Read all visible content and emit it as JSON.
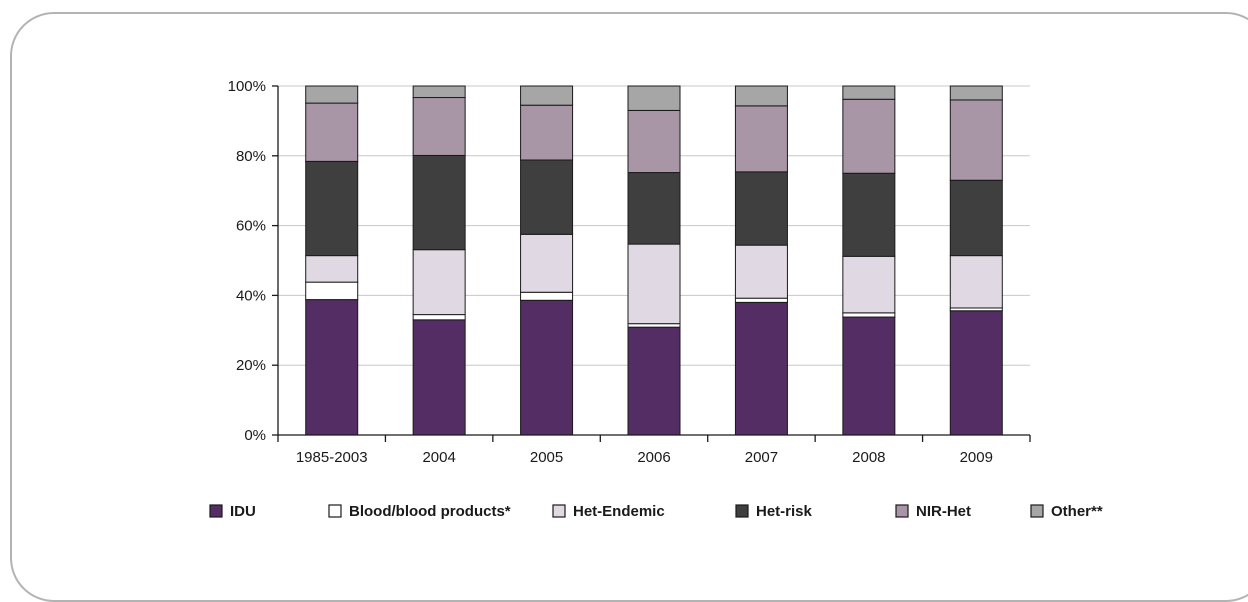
{
  "chart_data": {
    "type": "bar",
    "stacked": true,
    "percent": true,
    "categories": [
      "1985-2003",
      "2004",
      "2005",
      "2006",
      "2007",
      "2008",
      "2009"
    ],
    "ylim": [
      0,
      100
    ],
    "yticks": [
      "0%",
      "20%",
      "40%",
      "60%",
      "80%",
      "100%"
    ],
    "grid": true,
    "legend_position": "bottom",
    "series": [
      {
        "name": "IDU",
        "color": "#532d63",
        "values": [
          38.8,
          33.0,
          38.6,
          30.9,
          38.0,
          33.8,
          35.6
        ]
      },
      {
        "name": "Blood/blood products*",
        "color": "#ffffff",
        "values": [
          5.0,
          1.5,
          2.3,
          1.0,
          1.2,
          1.2,
          0.8
        ]
      },
      {
        "name": "Het-Endemic",
        "color": "#e0d8e2",
        "values": [
          7.6,
          18.6,
          16.6,
          22.8,
          15.2,
          16.2,
          15.0
        ]
      },
      {
        "name": "Het-risk",
        "color": "#3f3f3f",
        "values": [
          27.0,
          27.0,
          21.3,
          20.5,
          21.0,
          23.8,
          21.6
        ]
      },
      {
        "name": "NIR-Het",
        "color": "#a895a6",
        "values": [
          16.7,
          16.6,
          15.7,
          17.8,
          18.9,
          21.2,
          23.0
        ]
      },
      {
        "name": "Other**",
        "color": "#a6a6a6",
        "values": [
          4.9,
          3.3,
          5.5,
          7.0,
          5.7,
          3.8,
          4.0
        ]
      }
    ]
  }
}
